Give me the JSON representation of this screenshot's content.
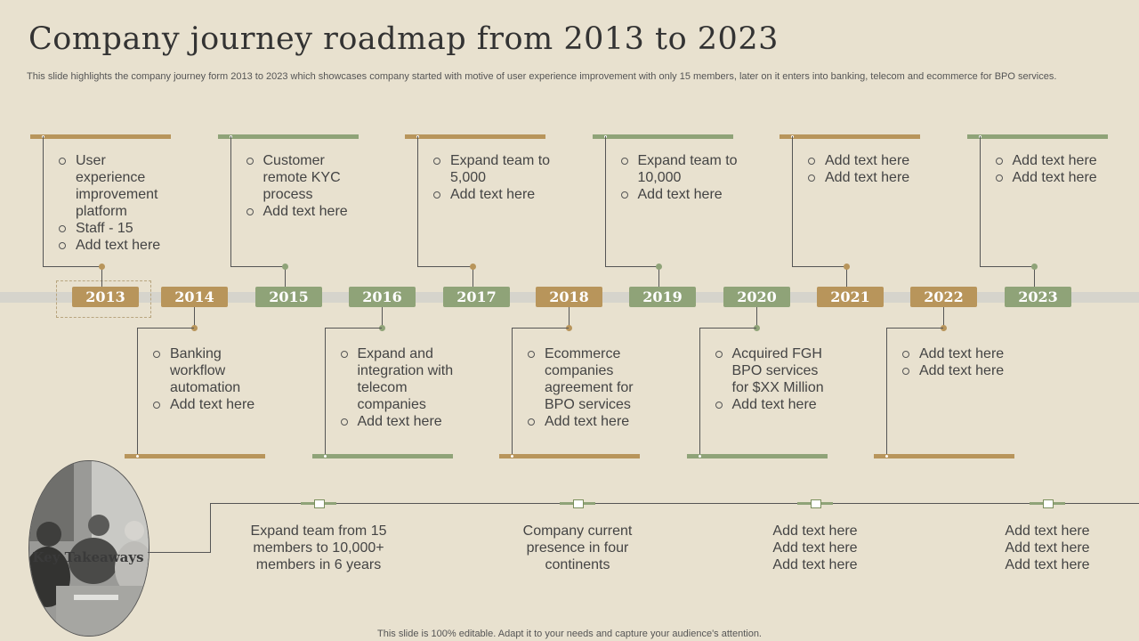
{
  "title": "Company journey roadmap from 2013 to 2023",
  "subtitle": "This slide highlights the company journey form 2013 to 2023 which showcases company started with motive of user experience improvement with only 15 members, later on it enters into banking, telecom and ecommerce for BPO services.",
  "colors": {
    "gold": "#b8955b",
    "green": "#8fa378",
    "background": "#e8e1cf"
  },
  "years": [
    "2013",
    "2014",
    "2015",
    "2016",
    "2017",
    "2018",
    "2019",
    "2020",
    "2021",
    "2022",
    "2023"
  ],
  "milestones": [
    {
      "year": "2013",
      "items": [
        "User experience improvement platform",
        "Staff - 15",
        "Add text here"
      ]
    },
    {
      "year": "2014",
      "items": [
        "Banking workflow automation",
        "Add text here"
      ]
    },
    {
      "year": "2015",
      "items": [
        "Customer remote KYC process",
        "Add text here"
      ]
    },
    {
      "year": "2016",
      "items": [
        "Expand and integration with telecom companies",
        "Add text here"
      ]
    },
    {
      "year": "2017",
      "items": [
        "Expand team to 5,000",
        "Add text here"
      ]
    },
    {
      "year": "2018",
      "items": [
        "Ecommerce companies agreement for BPO services",
        "Add text here"
      ]
    },
    {
      "year": "2019",
      "items": [
        "Expand team to 10,000",
        "Add text here"
      ]
    },
    {
      "year": "2020",
      "items": [
        "Acquired FGH BPO services for $XX Million",
        "Add text here"
      ]
    },
    {
      "year": "2021",
      "items": [
        "Add text here",
        "Add text here"
      ]
    },
    {
      "year": "2022",
      "items": [
        "Add text here",
        "Add text here"
      ]
    },
    {
      "year": "2023",
      "items": [
        "Add text here",
        "Add text here"
      ]
    }
  ],
  "key_takeaways": {
    "label": "Key Takeaways",
    "items": [
      "Expand team from 15 members to 10,000+ members in 6 years",
      "Company current presence in four continents",
      "Add text here Add text here Add text here",
      "Add text here Add text here Add text here"
    ]
  },
  "footer": "This slide is 100% editable. Adapt it to your needs and capture your audience's attention."
}
